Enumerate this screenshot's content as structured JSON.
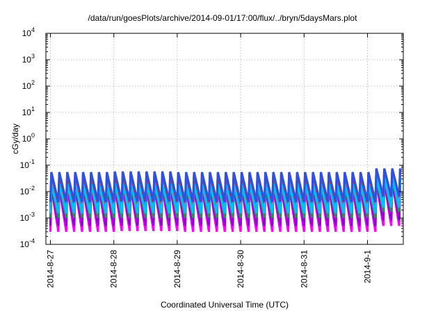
{
  "chart_data": {
    "type": "line",
    "title": "/data/run/goesPlots/archive/2014-09-01/17:00/flux/../bryn/5daysMars.plot",
    "xlabel": "Coordinated Universal Time (UTC)",
    "ylabel": "cGy/day",
    "y_scale": "log",
    "ylim": [
      0.0001,
      10000
    ],
    "y_ticks": [
      {
        "base": "10",
        "exp": "-4"
      },
      {
        "base": "10",
        "exp": "-3"
      },
      {
        "base": "10",
        "exp": "-2"
      },
      {
        "base": "10",
        "exp": "-1"
      },
      {
        "base": "10",
        "exp": "0"
      },
      {
        "base": "10",
        "exp": "1"
      },
      {
        "base": "10",
        "exp": "2"
      },
      {
        "base": "10",
        "exp": "3"
      },
      {
        "base": "10",
        "exp": "4"
      }
    ],
    "x_ticks": [
      "2014-8-27",
      "2014-8-28",
      "2014-8-29",
      "2014-8-30",
      "2014-8-31",
      "2014-9-1"
    ],
    "grid": true,
    "legend": "none",
    "period_hours": 3,
    "series": [
      {
        "color": "#ff00ff",
        "peak": [
          0.0145,
          0.015,
          0.0145,
          0.015,
          0.0145,
          0.025
        ],
        "trough": [
          0.0003,
          0.00032,
          0.0003,
          0.0003,
          0.0003,
          0.0005
        ]
      },
      {
        "color": "#9400d3",
        "peak": [
          0.017,
          0.018,
          0.017,
          0.018,
          0.017,
          0.028
        ],
        "trough": [
          0.0005,
          0.00052,
          0.0005,
          0.0005,
          0.0005,
          0.0008
        ]
      },
      {
        "color": "#e41a1c",
        "peak": [
          0.05,
          0.052,
          0.05,
          0.05,
          0.05,
          0.075
        ],
        "trough": [
          0.0025,
          0.0026,
          0.0025,
          0.0025,
          0.0025,
          0.004
        ]
      },
      {
        "color": "#2e8b57",
        "peak": [
          0.02,
          0.021,
          0.02,
          0.021,
          0.02,
          0.033
        ],
        "trough": [
          0.001,
          0.001,
          0.001,
          0.001,
          0.001,
          0.0017
        ]
      },
      {
        "color": "#00bfff",
        "peak": [
          0.02,
          0.021,
          0.02,
          0.021,
          0.02,
          0.035
        ],
        "trough": [
          0.0015,
          0.0015,
          0.0015,
          0.0015,
          0.0015,
          0.0025
        ]
      },
      {
        "color": "#3050e0",
        "peak": [
          0.055,
          0.058,
          0.055,
          0.055,
          0.055,
          0.075
        ],
        "trough": [
          0.004,
          0.0042,
          0.004,
          0.004,
          0.004,
          0.0065
        ]
      }
    ]
  }
}
